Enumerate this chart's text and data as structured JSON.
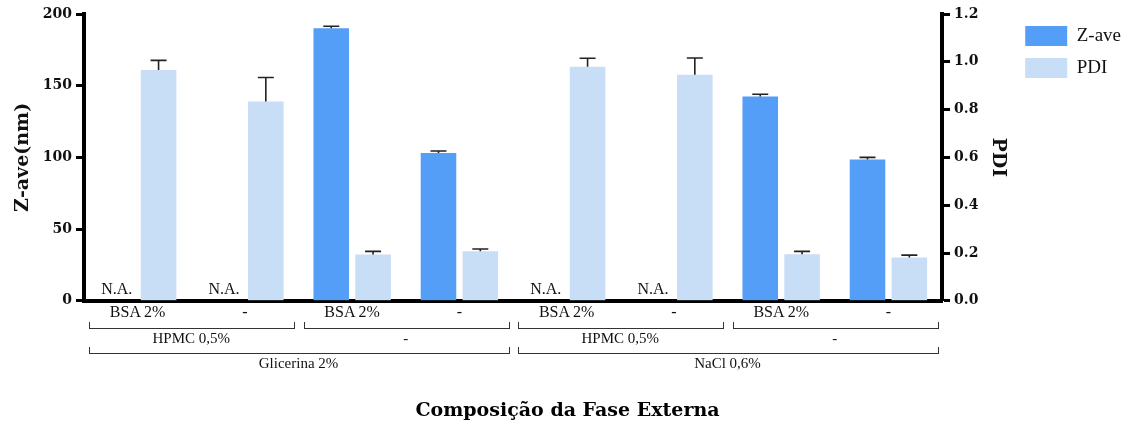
{
  "chart_data": {
    "type": "bar",
    "xlabel": "Composição da Fase Externa",
    "ylabel": "Z-ave(nm)",
    "y2label": "PDI",
    "categories": [
      "BSA 2%",
      "-",
      "BSA 2%",
      "-",
      "BSA 2%",
      "-",
      "BSA 2%",
      "-"
    ],
    "series": [
      {
        "name": "Z-ave",
        "color": "#559ef7",
        "values": [
          null,
          null,
          190,
          103,
          null,
          null,
          142.5,
          98.5
        ],
        "errors": [
          null,
          null,
          1.5,
          1.5,
          null,
          null,
          1.5,
          1.5
        ],
        "value_labels": [
          "N.A.",
          "N.A.",
          null,
          null,
          "N.A.",
          "N.A.",
          null,
          null
        ]
      },
      {
        "name": "PDI",
        "color": "#c8ddf6",
        "axis": "y2",
        "values": [
          0.966,
          0.834,
          0.194,
          0.207,
          0.979,
          0.946,
          0.195,
          0.181
        ],
        "errors": [
          0.04,
          0.1,
          0.013,
          0.01,
          0.036,
          0.07,
          0.012,
          0.01
        ]
      }
    ],
    "ylim": [
      0,
      200
    ],
    "yticks": [
      0,
      50,
      100,
      150,
      200
    ],
    "y2lim": [
      0,
      1.2
    ],
    "y2ticks": [
      {
        "value": 0,
        "label": "0.0"
      },
      {
        "value": 0.2,
        "label": "0.2"
      },
      {
        "value": 0.4,
        "label": "0.4"
      },
      {
        "value": 0.6,
        "label": "0.6"
      },
      {
        "value": 0.8,
        "label": "0.8"
      },
      {
        "value": 1,
        "label": "1.0"
      },
      {
        "value": 1.2,
        "label": "1.2"
      }
    ],
    "legend": "top right",
    "grid": false,
    "annotations": [
      "HPMC 0,5%",
      "-",
      "HPMC 0,5%",
      "-",
      "Glicerina 2%",
      "NaCl 0,6%"
    ]
  }
}
